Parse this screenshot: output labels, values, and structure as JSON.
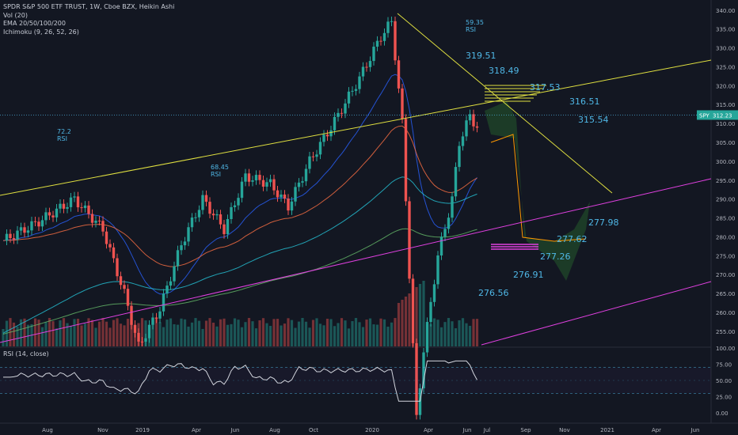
{
  "legend": {
    "symbol": "SPDR S&P 500 ETF TRUST, 1W, Cboe BZX, Heikin Ashi",
    "vol": "Vol (20)",
    "ema": "EMA 20/50/100/200",
    "ichimoku": "Ichimoku (9, 26, 52, 26)"
  },
  "rsi_pane": {
    "title": "RSI (14, close)"
  },
  "colors": {
    "up": "#26a69a",
    "down": "#ef5350",
    "trendline": "#e0e040",
    "channel": "#e040e0",
    "label": "#4fb7e6",
    "background": "#131722"
  },
  "chart_data": {
    "type": "candlestick",
    "price_axis": [
      340,
      335,
      330,
      325,
      320,
      315,
      310,
      305,
      300,
      295,
      290,
      285,
      280,
      275,
      270,
      265,
      260,
      255
    ],
    "ylim": [
      251,
      341
    ],
    "current_price": {
      "symbol": "SPY",
      "value": "312.23"
    },
    "rsi_axis": [
      "100.00",
      "75.00",
      "50.00",
      "25.00",
      "0.00"
    ],
    "rsi_levels": [
      70,
      30
    ],
    "time_axis": [
      "Aug",
      "Nov",
      "2019",
      "Apr",
      "Jun",
      "Aug",
      "Oct",
      "2020",
      "Apr",
      "Jun",
      "Jul",
      "Sep",
      "Nov",
      "2021",
      "Apr",
      "Jun"
    ],
    "annotations": {
      "target_levels": [
        "319.51",
        "318.49",
        "317.53",
        "316.51",
        "315.54",
        "277.98",
        "277.62",
        "277.26",
        "276.91",
        "276.56"
      ],
      "rsi_readings": [
        {
          "value": "72.2",
          "label": "RSI"
        },
        {
          "value": "68.45",
          "label": "RSI"
        },
        {
          "value": "59.35",
          "label": "RSI"
        }
      ]
    }
  }
}
